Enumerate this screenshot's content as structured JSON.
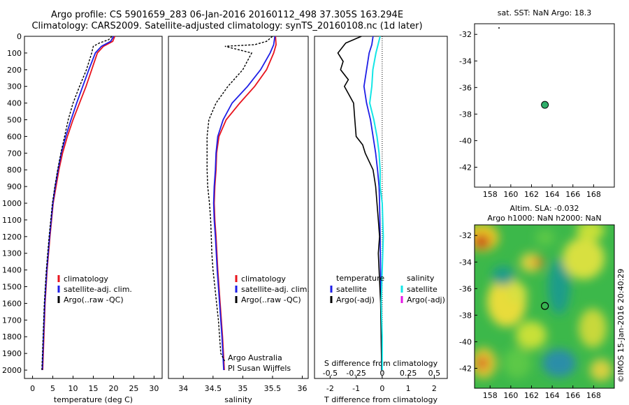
{
  "titles": {
    "line1": "Argo profile: CS 5901659_283 06-Jan-2016 20160112_498 37.305S 163.294E",
    "line2": "Climatology: CARS2009. Satellite-adjusted climatology: synTS_20160108.nc (1d later)"
  },
  "colors": {
    "climatology": "#e8141e",
    "satellite": "#1e1ee6",
    "argo": "#000000",
    "salinity_sat": "#14e6e6",
    "salinity_argo": "#e614e6"
  },
  "chart_data": [
    {
      "type": "line",
      "name": "temperature-profile",
      "xlabel": "temperature (deg C)",
      "ylabel": "",
      "xlim": [
        -2,
        32
      ],
      "ylim": [
        2050,
        0
      ],
      "xticks": [
        0,
        5,
        10,
        15,
        20,
        25,
        30
      ],
      "yticks": [
        0,
        100,
        200,
        300,
        400,
        500,
        600,
        700,
        800,
        900,
        1000,
        1100,
        1200,
        1300,
        1400,
        1500,
        1600,
        1700,
        1800,
        1900,
        2000
      ],
      "legend": [
        "climatology",
        "satellite-adj. clim.",
        "Argo(..raw -QC)"
      ],
      "series": [
        {
          "name": "climatology",
          "depth": [
            0,
            30,
            60,
            100,
            200,
            300,
            400,
            500,
            600,
            700,
            800,
            900,
            1000,
            1200,
            1400,
            1600,
            1800,
            2000
          ],
          "values": [
            20.3,
            19.8,
            17.5,
            16.0,
            14.6,
            13.2,
            11.6,
            10.0,
            8.6,
            7.4,
            6.5,
            5.8,
            5.1,
            4.3,
            3.6,
            3.1,
            2.8,
            2.5
          ]
        },
        {
          "name": "satellite-adj. clim.",
          "depth": [
            0,
            30,
            60,
            100,
            200,
            300,
            400,
            500,
            600,
            700,
            800,
            900,
            1000,
            1200,
            1400,
            1600,
            1800,
            2000
          ],
          "values": [
            20.0,
            19.3,
            17.0,
            15.5,
            13.9,
            12.4,
            10.9,
            9.5,
            8.2,
            7.1,
            6.3,
            5.6,
            5.0,
            4.2,
            3.5,
            3.0,
            2.7,
            2.4
          ]
        },
        {
          "name": "Argo(..raw -QC)",
          "depth": [
            0,
            20,
            40,
            60,
            100,
            200,
            300,
            400,
            500,
            600,
            700,
            800,
            900,
            1000,
            1200,
            1400,
            1600,
            1800,
            2000
          ],
          "values": [
            19.6,
            18.8,
            16.5,
            15.0,
            14.6,
            13.3,
            11.6,
            10.0,
            8.8,
            7.9,
            7.0,
            6.2,
            5.5,
            4.9,
            4.1,
            3.4,
            2.9,
            2.6,
            2.3
          ]
        }
      ]
    },
    {
      "type": "line",
      "name": "salinity-profile",
      "xlabel": "salinity",
      "ylabel": "",
      "xlim": [
        33.75,
        36.1
      ],
      "ylim": [
        2050,
        0
      ],
      "xticks": [
        34,
        34.5,
        35,
        35.5,
        36
      ],
      "legend": [
        "climatology",
        "satellite-adj. clim.",
        "Argo(..raw -QC)"
      ],
      "annotation": [
        "Argo Australia",
        "PI Susan Wijffels"
      ],
      "series": [
        {
          "name": "climatology",
          "depth": [
            0,
            50,
            100,
            200,
            300,
            400,
            500,
            600,
            700,
            800,
            900,
            1000,
            1100,
            1200,
            1400,
            1600,
            1800,
            2000
          ],
          "values": [
            35.55,
            35.56,
            35.52,
            35.4,
            35.2,
            34.95,
            34.72,
            34.6,
            34.56,
            34.55,
            34.53,
            34.52,
            34.53,
            34.55,
            34.58,
            34.62,
            34.66,
            34.69
          ]
        },
        {
          "name": "satellite-adj. clim.",
          "depth": [
            0,
            50,
            100,
            200,
            300,
            400,
            500,
            600,
            700,
            800,
            900,
            1000,
            1100,
            1200,
            1400,
            1600,
            1800,
            2000
          ],
          "values": [
            35.54,
            35.52,
            35.46,
            35.3,
            35.08,
            34.82,
            34.67,
            34.58,
            34.55,
            34.54,
            34.52,
            34.51,
            34.52,
            34.54,
            34.57,
            34.61,
            34.65,
            34.68
          ]
        },
        {
          "name": "Argo(..raw -QC)",
          "depth": [
            0,
            30,
            50,
            60,
            100,
            200,
            300,
            400,
            500,
            600,
            700,
            800,
            900,
            1000,
            1100,
            1200,
            1300,
            1400,
            1500,
            1600,
            1700,
            1800,
            1900,
            1950
          ],
          "values": [
            35.5,
            35.4,
            35.2,
            34.7,
            35.15,
            35.0,
            34.75,
            34.55,
            34.43,
            34.4,
            34.4,
            34.4,
            34.41,
            34.44,
            34.46,
            34.47,
            34.48,
            34.5,
            34.53,
            34.56,
            34.59,
            34.61,
            34.63,
            34.7
          ]
        }
      ]
    },
    {
      "type": "line",
      "name": "difference-profile",
      "xlabel": "T difference from climatology",
      "xlabel_top": "S difference from climatology",
      "xlim": [
        -2.6,
        2.5
      ],
      "xlim_salinity": [
        -0.65,
        0.625
      ],
      "ylim": [
        2050,
        0
      ],
      "xticks": [
        -2,
        -1,
        0,
        1,
        2
      ],
      "xticks_salinity": [
        -0.5,
        -0.25,
        0,
        0.25,
        0.5
      ],
      "legend": [
        "temperature",
        "satellite",
        "Argo(-adj)",
        "salinity",
        "satellite",
        "Argo(-adj)"
      ],
      "series": [
        {
          "name": "temperature satellite",
          "depth": [
            0,
            50,
            100,
            200,
            300,
            400,
            500,
            600,
            700,
            800,
            900,
            1000,
            1200,
            1400,
            1600,
            1800,
            2000
          ],
          "values": [
            -0.35,
            -0.4,
            -0.5,
            -0.6,
            -0.7,
            -0.6,
            -0.45,
            -0.35,
            -0.25,
            -0.18,
            -0.12,
            -0.1,
            -0.08,
            -0.06,
            -0.04,
            -0.03,
            -0.02
          ]
        },
        {
          "name": "temperature Argo(-adj)",
          "depth": [
            0,
            40,
            100,
            150,
            200,
            260,
            300,
            400,
            500,
            600,
            650,
            700,
            800,
            900,
            1000,
            1100,
            1200,
            1300,
            1400,
            1600,
            1800,
            2000
          ],
          "values": [
            -0.8,
            -1.4,
            -1.7,
            -1.5,
            -1.6,
            -1.3,
            -1.45,
            -1.1,
            -1.05,
            -1.0,
            -0.75,
            -0.65,
            -0.35,
            -0.25,
            -0.2,
            -0.15,
            -0.1,
            -0.15,
            -0.12,
            -0.06,
            -0.04,
            -0.02
          ]
        },
        {
          "name": "salinity satellite",
          "depth": [
            0,
            50,
            100,
            200,
            300,
            400,
            500,
            600,
            700,
            800,
            900,
            1000,
            1200,
            1400,
            1600,
            1800,
            2000
          ],
          "values": [
            -0.02,
            -0.04,
            -0.06,
            -0.09,
            -0.1,
            -0.12,
            -0.08,
            -0.05,
            -0.03,
            -0.02,
            -0.02,
            0.0,
            0.01,
            0.0,
            -0.01,
            0.0,
            0.0
          ]
        }
      ]
    },
    {
      "type": "heatmap",
      "name": "sst-map",
      "title": "sat. SST: NaN Argo: 18.3",
      "xlim": [
        156.5,
        170
      ],
      "ylim": [
        -43.5,
        -31.2
      ],
      "xticks": [
        158,
        160,
        162,
        164,
        166,
        168
      ],
      "yticks": [
        -32,
        -34,
        -36,
        -38,
        -40,
        -42
      ],
      "marker": {
        "lon": 163.294,
        "lat": -37.305
      }
    },
    {
      "type": "heatmap",
      "name": "sla-map",
      "title_line1": "Altim. SLA: -0.032",
      "title_line2": "Argo h1000: NaN h2000: NaN",
      "xlim": [
        156.5,
        170
      ],
      "ylim": [
        -43.5,
        -31.2
      ],
      "xticks": [
        158,
        160,
        162,
        164,
        166,
        168
      ],
      "yticks": [
        -32,
        -34,
        -36,
        -38,
        -40,
        -42
      ],
      "marker": {
        "lon": 163.294,
        "lat": -37.305
      }
    }
  ],
  "footer": {
    "credit": "©IMOS 15-Jan-2016 20:40:29"
  }
}
